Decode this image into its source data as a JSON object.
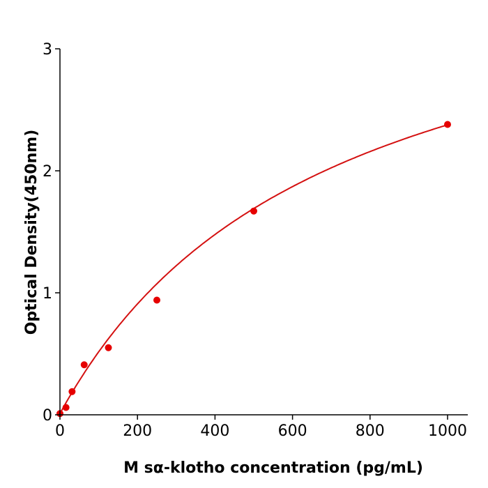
{
  "chart_data": {
    "type": "scatter",
    "title": "",
    "xlabel": "M  sα-klotho concentration (pg/mL)",
    "ylabel": "Optical Density(450nm)",
    "xlim": [
      0,
      1050
    ],
    "ylim": [
      0,
      3
    ],
    "xticks": [
      "0",
      "200",
      "400",
      "600",
      "800",
      "1000"
    ],
    "yticks": [
      "0",
      "1",
      "2",
      "3"
    ],
    "grid": false,
    "legend": "none",
    "color": "#e60000",
    "curve_color": "#d41010",
    "series": [
      {
        "x": [
          0,
          15.6,
          31.25,
          62.5,
          125,
          250,
          500,
          1000
        ],
        "y": [
          0.01,
          0.06,
          0.19,
          0.41,
          0.55,
          0.94,
          1.67,
          2.38
        ]
      }
    ],
    "fit": "smooth curve through points"
  }
}
